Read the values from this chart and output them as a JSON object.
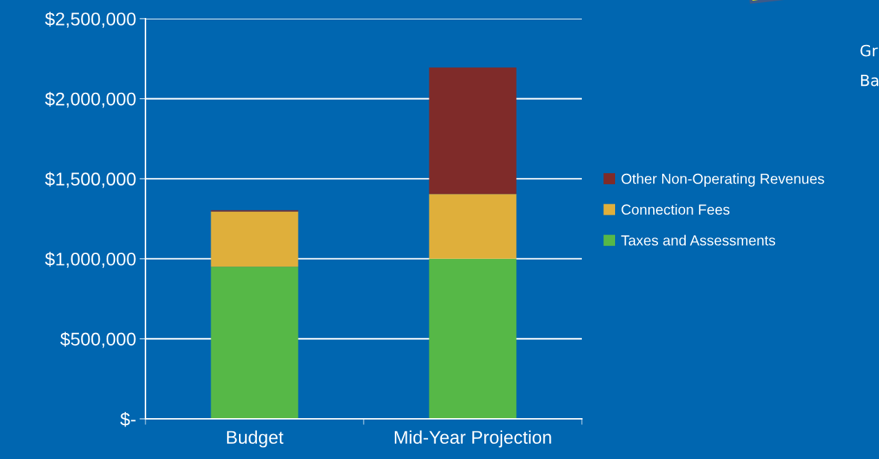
{
  "chart_data": {
    "type": "bar",
    "stacked": true,
    "categories": [
      "Budget",
      "Mid-Year Projection"
    ],
    "series": [
      {
        "name": "Taxes and Assessments",
        "color": "#56b847",
        "values": [
          950000,
          1000000
        ]
      },
      {
        "name": "Connection Fees",
        "color": "#dfaf3b",
        "values": [
          345000,
          405000
        ]
      },
      {
        "name": "Other Non-Operating Revenues",
        "color": "#7f2b29",
        "values": [
          8000,
          790000
        ]
      }
    ],
    "ylim": [
      0,
      2500000
    ],
    "yticks": [
      {
        "value": 0,
        "label": "$-"
      },
      {
        "value": 500000,
        "label": "$500,000"
      },
      {
        "value": 1000000,
        "label": "$1,000,000"
      },
      {
        "value": 1500000,
        "label": "$1,500,000"
      },
      {
        "value": 2000000,
        "label": "$2,000,000"
      },
      {
        "value": 2500000,
        "label": "$2,500,000"
      }
    ],
    "grid": "y",
    "legend": "right",
    "annotations": [
      "Gr",
      "Ba"
    ]
  }
}
